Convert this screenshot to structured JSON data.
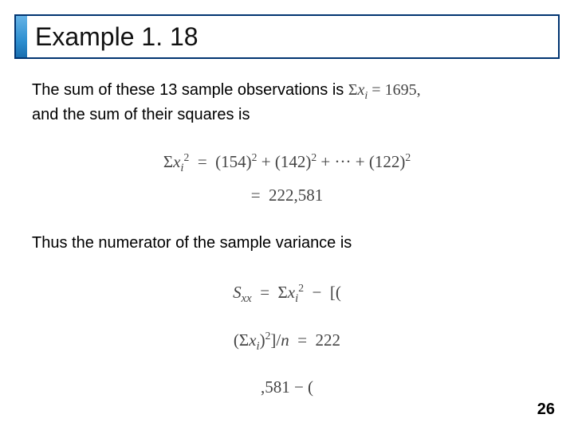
{
  "title": "Example 1. 18",
  "body": {
    "line1a": "The sum of these 13 sample observations is ",
    "inline_sum": "Σxᵢ = 1695,",
    "line1b": "and the sum of their squares is",
    "eq1_lhs": "Σxᵢ² = (154)² + (142)² + ··· + (122)²",
    "eq1_rhs": "= 222,581",
    "line2": "Thus the numerator of the sample variance is",
    "frag1": "Sₓₓ  =  Σxᵢ²  −  [(",
    "frag2": "(Σxᵢ)²]/n  =  222",
    "frag3": ",581 − ("
  },
  "page_number": "26",
  "colors": {
    "border": "#003471",
    "accent_top": "#66b3e6",
    "accent_bottom": "#1a6fb0",
    "math_text": "#444444"
  },
  "typography": {
    "title_fontsize": 32,
    "body_fontsize": 20,
    "math_fontsize": 21,
    "math_family": "Times New Roman"
  }
}
